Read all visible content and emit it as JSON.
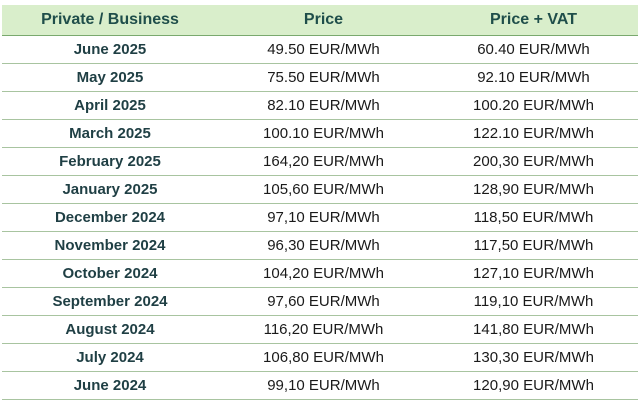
{
  "table": {
    "headers": [
      "Private / Business",
      "Price",
      "Price + VAT"
    ],
    "rows": [
      {
        "month": "June 2025",
        "price": "49.50 EUR/MWh",
        "price_vat": "60.40 EUR/MWh"
      },
      {
        "month": "May 2025",
        "price": "75.50 EUR/MWh",
        "price_vat": "92.10 EUR/MWh"
      },
      {
        "month": "April 2025",
        "price": "82.10 EUR/MWh",
        "price_vat": "100.20 EUR/MWh"
      },
      {
        "month": "March 2025",
        "price": "100.10 EUR/MWh",
        "price_vat": "122.10 EUR/MWh"
      },
      {
        "month": "February 2025",
        "price": "164,20 EUR/MWh",
        "price_vat": "200,30 EUR/MWh"
      },
      {
        "month": "January 2025",
        "price": "105,60 EUR/MWh",
        "price_vat": "128,90 EUR/MWh"
      },
      {
        "month": "December 2024",
        "price": "97,10 EUR/MWh",
        "price_vat": "118,50 EUR/MWh"
      },
      {
        "month": "November 2024",
        "price": "96,30 EUR/MWh",
        "price_vat": "117,50 EUR/MWh"
      },
      {
        "month": "October 2024",
        "price": "104,20 EUR/MWh",
        "price_vat": "127,10 EUR/MWh"
      },
      {
        "month": "September 2024",
        "price": "97,60 EUR/MWh",
        "price_vat": "119,10 EUR/MWh"
      },
      {
        "month": "August 2024",
        "price": "116,20 EUR/MWh",
        "price_vat": "141,80 EUR/MWh"
      },
      {
        "month": "July 2024",
        "price": "106,80 EUR/MWh",
        "price_vat": "130,30 EUR/MWh"
      },
      {
        "month": "June 2024",
        "price": "99,10 EUR/MWh",
        "price_vat": "120,90 EUR/MWh"
      }
    ],
    "colors": {
      "header_bg": "#d9eecb",
      "header_text": "#1f4e4a",
      "row_divider": "#a8c4a0"
    }
  }
}
